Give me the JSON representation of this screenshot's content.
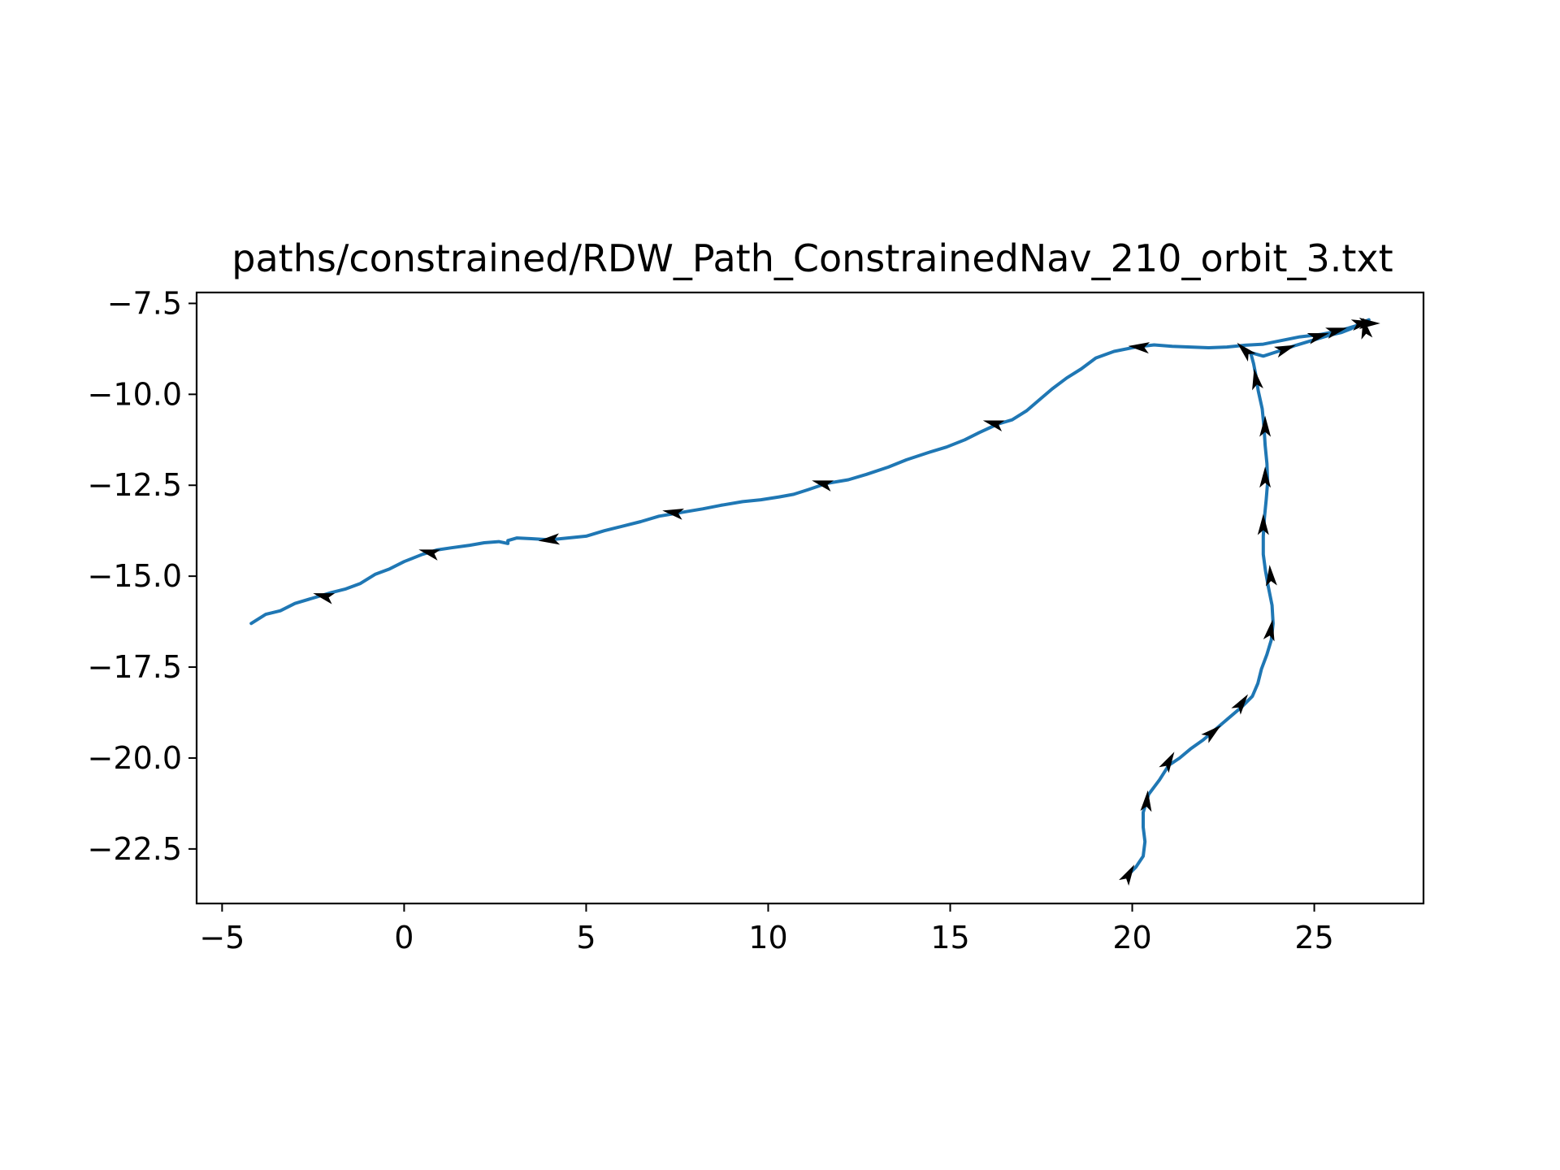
{
  "chart_data": {
    "type": "line",
    "title": "paths/constrained/RDW_Path_ConstrainedNav_210_orbit_3.txt",
    "xlabel": "",
    "ylabel": "",
    "xlim": [
      -5.7,
      28.0
    ],
    "ylim": [
      -24.0,
      -7.2
    ],
    "xticks": [
      -5,
      0,
      5,
      10,
      15,
      20,
      25
    ],
    "yticks": [
      -7.5,
      -10.0,
      -12.5,
      -15.0,
      -17.5,
      -20.0,
      -22.5
    ],
    "xtick_labels": [
      "−5",
      "0",
      "5",
      "10",
      "15",
      "20",
      "25"
    ],
    "ytick_labels": [
      "−7.5",
      "−10.0",
      "−12.5",
      "−15.0",
      "−17.5",
      "−20.0",
      "−22.5"
    ],
    "grid": false,
    "line_color": "#1f77b4",
    "arrow_color": "#000000",
    "path": [
      [
        19.9,
        -23.2
      ],
      [
        20.1,
        -23.0
      ],
      [
        20.3,
        -22.7
      ],
      [
        20.35,
        -22.3
      ],
      [
        20.3,
        -21.9
      ],
      [
        20.3,
        -21.5
      ],
      [
        20.45,
        -21.0
      ],
      [
        20.75,
        -20.6
      ],
      [
        21.0,
        -20.2
      ],
      [
        21.3,
        -20.0
      ],
      [
        21.6,
        -19.75
      ],
      [
        21.95,
        -19.5
      ],
      [
        22.3,
        -19.2
      ],
      [
        22.65,
        -18.9
      ],
      [
        23.0,
        -18.6
      ],
      [
        23.3,
        -18.3
      ],
      [
        23.45,
        -17.95
      ],
      [
        23.55,
        -17.55
      ],
      [
        23.7,
        -17.15
      ],
      [
        23.82,
        -16.75
      ],
      [
        23.87,
        -16.3
      ],
      [
        23.84,
        -15.8
      ],
      [
        23.74,
        -15.3
      ],
      [
        23.66,
        -14.85
      ],
      [
        23.6,
        -14.4
      ],
      [
        23.6,
        -13.9
      ],
      [
        23.63,
        -13.4
      ],
      [
        23.68,
        -12.9
      ],
      [
        23.72,
        -12.4
      ],
      [
        23.7,
        -11.9
      ],
      [
        23.65,
        -11.4
      ],
      [
        23.62,
        -10.9
      ],
      [
        23.57,
        -10.4
      ],
      [
        23.46,
        -9.9
      ],
      [
        23.4,
        -9.5
      ],
      [
        23.33,
        -9.15
      ],
      [
        23.25,
        -8.85
      ],
      [
        23.6,
        -8.95
      ],
      [
        24.0,
        -8.82
      ],
      [
        24.5,
        -8.65
      ],
      [
        25.0,
        -8.5
      ],
      [
        25.4,
        -8.38
      ],
      [
        25.75,
        -8.3
      ],
      [
        26.0,
        -8.2
      ],
      [
        26.25,
        -8.05
      ],
      [
        26.5,
        -7.95
      ],
      [
        26.2,
        -8.1
      ],
      [
        25.7,
        -8.25
      ],
      [
        25.2,
        -8.35
      ],
      [
        24.6,
        -8.42
      ],
      [
        24.1,
        -8.52
      ],
      [
        23.6,
        -8.62
      ],
      [
        23.1,
        -8.65
      ],
      [
        22.6,
        -8.7
      ],
      [
        22.1,
        -8.72
      ],
      [
        21.6,
        -8.7
      ],
      [
        21.1,
        -8.68
      ],
      [
        20.6,
        -8.64
      ],
      [
        20.1,
        -8.7
      ],
      [
        19.5,
        -8.82
      ],
      [
        19.0,
        -9.0
      ],
      [
        18.6,
        -9.3
      ],
      [
        18.2,
        -9.55
      ],
      [
        17.8,
        -9.85
      ],
      [
        17.45,
        -10.15
      ],
      [
        17.1,
        -10.45
      ],
      [
        16.7,
        -10.7
      ],
      [
        16.3,
        -10.82
      ],
      [
        15.8,
        -11.05
      ],
      [
        15.4,
        -11.25
      ],
      [
        14.9,
        -11.45
      ],
      [
        14.4,
        -11.6
      ],
      [
        13.8,
        -11.8
      ],
      [
        13.3,
        -12.0
      ],
      [
        12.7,
        -12.2
      ],
      [
        12.2,
        -12.35
      ],
      [
        11.6,
        -12.45
      ],
      [
        11.1,
        -12.62
      ],
      [
        10.7,
        -12.75
      ],
      [
        10.3,
        -12.82
      ],
      [
        9.8,
        -12.9
      ],
      [
        9.3,
        -12.95
      ],
      [
        8.7,
        -13.05
      ],
      [
        8.2,
        -13.15
      ],
      [
        7.6,
        -13.25
      ],
      [
        7.0,
        -13.35
      ],
      [
        6.5,
        -13.5
      ],
      [
        5.9,
        -13.65
      ],
      [
        5.5,
        -13.75
      ],
      [
        5.0,
        -13.9
      ],
      [
        4.5,
        -13.95
      ],
      [
        4.0,
        -14.0
      ],
      [
        3.5,
        -13.97
      ],
      [
        3.1,
        -13.95
      ],
      [
        2.85,
        -14.02
      ],
      [
        2.85,
        -14.1
      ],
      [
        2.6,
        -14.05
      ],
      [
        2.2,
        -14.08
      ],
      [
        1.8,
        -14.15
      ],
      [
        1.3,
        -14.22
      ],
      [
        0.9,
        -14.28
      ],
      [
        0.5,
        -14.4
      ],
      [
        0.0,
        -14.6
      ],
      [
        -0.4,
        -14.8
      ],
      [
        -0.8,
        -14.95
      ],
      [
        -1.2,
        -15.2
      ],
      [
        -1.6,
        -15.35
      ],
      [
        -2.0,
        -15.45
      ],
      [
        -2.5,
        -15.6
      ],
      [
        -3.0,
        -15.75
      ],
      [
        -3.4,
        -15.95
      ],
      [
        -3.8,
        -16.05
      ],
      [
        -4.2,
        -16.3
      ]
    ],
    "arrows": [
      [
        19.9,
        -23.2,
        60
      ],
      [
        20.4,
        -21.2,
        85
      ],
      [
        21.0,
        -20.1,
        60
      ],
      [
        22.2,
        -19.3,
        40
      ],
      [
        23.0,
        -18.5,
        55
      ],
      [
        23.8,
        -16.5,
        80
      ],
      [
        23.8,
        -15.0,
        95
      ],
      [
        23.6,
        -13.6,
        90
      ],
      [
        23.65,
        -12.3,
        90
      ],
      [
        23.65,
        -10.9,
        90
      ],
      [
        23.4,
        -9.6,
        100
      ],
      [
        23.1,
        -8.8,
        135
      ],
      [
        24.2,
        -8.75,
        20
      ],
      [
        25.1,
        -8.4,
        15
      ],
      [
        25.6,
        -8.25,
        15
      ],
      [
        26.3,
        -8.05,
        10
      ],
      [
        26.5,
        -8.05,
        0
      ],
      [
        26.4,
        -8.2,
        100
      ],
      [
        20.2,
        -8.7,
        175
      ],
      [
        16.2,
        -10.8,
        165
      ],
      [
        11.5,
        -12.45,
        165
      ],
      [
        7.4,
        -13.25,
        170
      ],
      [
        4.0,
        -14.0,
        185
      ],
      [
        0.7,
        -14.35,
        165
      ],
      [
        -2.2,
        -15.55,
        165
      ]
    ]
  }
}
